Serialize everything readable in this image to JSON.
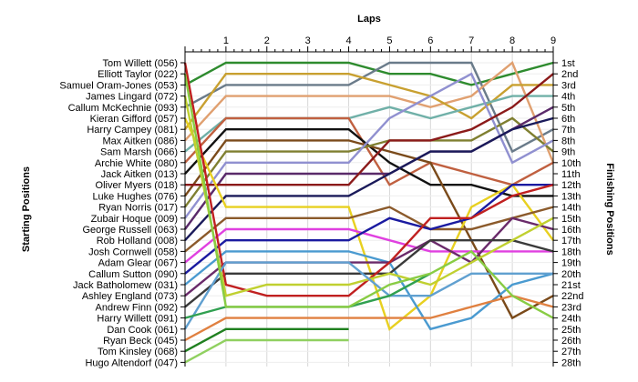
{
  "chart_data": {
    "type": "line",
    "title": "",
    "xlabel_top": "Laps",
    "ylabel_left": "Starting Positions",
    "ylabel_right": "Finishing Positions",
    "x": [
      0,
      1,
      2,
      3,
      4,
      5,
      6,
      7,
      8,
      9
    ],
    "x_tick_labels": [
      "1",
      "2",
      "3",
      "4",
      "5",
      "6",
      "7",
      "8",
      "9"
    ],
    "xlim": [
      0,
      9
    ],
    "ylim": [
      1,
      28
    ],
    "grid": "vertical",
    "left_labels": [
      "Tom Willett (056)",
      "Elliott Taylor (022)",
      "Samuel Oram-Jones (053)",
      "James Lingard (072)",
      "Callum McKechnie (093)",
      "Kieran Gifford (057)",
      "Harry Campey (081)",
      "Max Aitken (086)",
      "Sam Marsh (066)",
      "Archie White (080)",
      "Jack Aitken (013)",
      "Oliver Myers (018)",
      "Luke Hughes (076)",
      "Ryan Norris (017)",
      "Zubair Hoque (009)",
      "George Russell (063)",
      "Rob Holland (008)",
      "Josh Cornwell (058)",
      "Adam Glear (067)",
      "Callum Sutton (090)",
      "Jack Batholomew (031)",
      "Ashley England (073)",
      "Andrew Finn (092)",
      "Harry Willett (091)",
      "Dan Cook (061)",
      "Ryan Beck (045)",
      "Tom Kinsley (068)",
      "Hugo Altendorf (047)"
    ],
    "right_labels": [
      "1st",
      "2nd",
      "3rd",
      "4th",
      "5th",
      "6th",
      "7th",
      "8th",
      "9th",
      "10th",
      "11th",
      "12th",
      "13th",
      "14th",
      "15th",
      "16th",
      "17th",
      "18th",
      "19th",
      "20th",
      "21st",
      "22nd",
      "23rd",
      "24th",
      "25th",
      "26th",
      "27th",
      "28th"
    ],
    "series": [
      {
        "color": "#2e8b2e",
        "values": [
          3,
          1,
          1,
          1,
          1,
          2,
          2,
          3,
          2,
          1
        ]
      },
      {
        "color": "#6a7b8a",
        "values": [
          5,
          3,
          3,
          3,
          3,
          1,
          1,
          1,
          9,
          7
        ]
      },
      {
        "color": "#e0a070",
        "values": [
          8,
          4,
          4,
          4,
          4,
          4,
          5,
          4,
          1,
          10
        ]
      },
      {
        "color": "#c8a030",
        "values": [
          7,
          2,
          2,
          2,
          2,
          3,
          4,
          6,
          3,
          3
        ]
      },
      {
        "color": "#70b0a8",
        "values": [
          9,
          6,
          6,
          6,
          6,
          5,
          6,
          5,
          4,
          4
        ]
      },
      {
        "color": "#c06040",
        "values": [
          10,
          6,
          6,
          6,
          6,
          12,
          10,
          11,
          12,
          10
        ]
      },
      {
        "color": "#111111",
        "values": [
          11,
          7,
          7,
          7,
          7,
          10,
          12,
          12,
          13,
          13
        ]
      },
      {
        "color": "#7a4a1a",
        "values": [
          13,
          8,
          8,
          8,
          8,
          9,
          10,
          17,
          24,
          22
        ]
      },
      {
        "color": "#7f7f30",
        "values": [
          14,
          9,
          9,
          9,
          9,
          8,
          8,
          8,
          6,
          9
        ]
      },
      {
        "color": "#9090d0",
        "values": [
          15,
          10,
          10,
          10,
          10,
          6,
          4,
          2,
          10,
          8
        ]
      },
      {
        "color": "#5a2a6a",
        "values": [
          16,
          11,
          11,
          11,
          11,
          11,
          9,
          9,
          7,
          5
        ]
      },
      {
        "color": "#8b1a1a",
        "values": [
          12,
          12,
          12,
          12,
          12,
          8,
          8,
          7,
          5,
          2
        ]
      },
      {
        "color": "#1a1a5a",
        "values": [
          17,
          13,
          13,
          13,
          13,
          11,
          9,
          9,
          7,
          6
        ]
      },
      {
        "color": "#e8d020",
        "values": [
          6,
          14,
          14,
          14,
          14,
          25,
          22,
          14,
          12,
          17
        ]
      },
      {
        "color": "#8b5a2b",
        "values": [
          18,
          15,
          15,
          15,
          15,
          14,
          16,
          16,
          15,
          14
        ]
      },
      {
        "color": "#e040e0",
        "values": [
          19,
          16,
          16,
          16,
          16,
          17,
          18,
          18,
          18,
          18
        ]
      },
      {
        "color": "#1a1aa0",
        "values": [
          20,
          17,
          17,
          17,
          17,
          15,
          16,
          15,
          12,
          12
        ]
      },
      {
        "color": "#4a9ad0",
        "values": [
          21,
          18,
          18,
          18,
          18,
          19,
          25,
          24,
          21,
          20
        ]
      },
      {
        "color": "#6a2a6a",
        "values": [
          22,
          19,
          19,
          19,
          19,
          19,
          17,
          19,
          15,
          16
        ]
      },
      {
        "color": "#3a3a3a",
        "values": [
          23,
          20,
          20,
          20,
          20,
          20,
          17,
          17,
          17,
          18
        ]
      },
      {
        "color": "#c02020",
        "values": [
          1,
          21,
          22,
          22,
          22,
          19,
          15,
          15,
          13,
          12
        ]
      },
      {
        "color": "#c0d030",
        "values": [
          4,
          22,
          21,
          21,
          21,
          20,
          21,
          19,
          17,
          15
        ]
      },
      {
        "color": "#60a0d0",
        "values": [
          25,
          19,
          19,
          19,
          19,
          22,
          22,
          20,
          20,
          20
        ]
      },
      {
        "color": "#30a050",
        "values": [
          24,
          23,
          23,
          23,
          23,
          22,
          20,
          null,
          null,
          null
        ]
      },
      {
        "color": "#e08040",
        "values": [
          26,
          24,
          24,
          24,
          24,
          24,
          24,
          23,
          22,
          23
        ]
      },
      {
        "color": "#208020",
        "values": [
          27,
          25,
          25,
          25,
          25,
          null,
          null,
          null,
          null,
          null
        ]
      },
      {
        "color": "#90d060",
        "values": [
          28,
          26,
          26,
          26,
          26,
          null,
          null,
          null,
          null,
          null
        ]
      },
      {
        "color": "#88cc44",
        "values": [
          2,
          23,
          23,
          23,
          23,
          21,
          20,
          18,
          22,
          24
        ]
      }
    ]
  }
}
